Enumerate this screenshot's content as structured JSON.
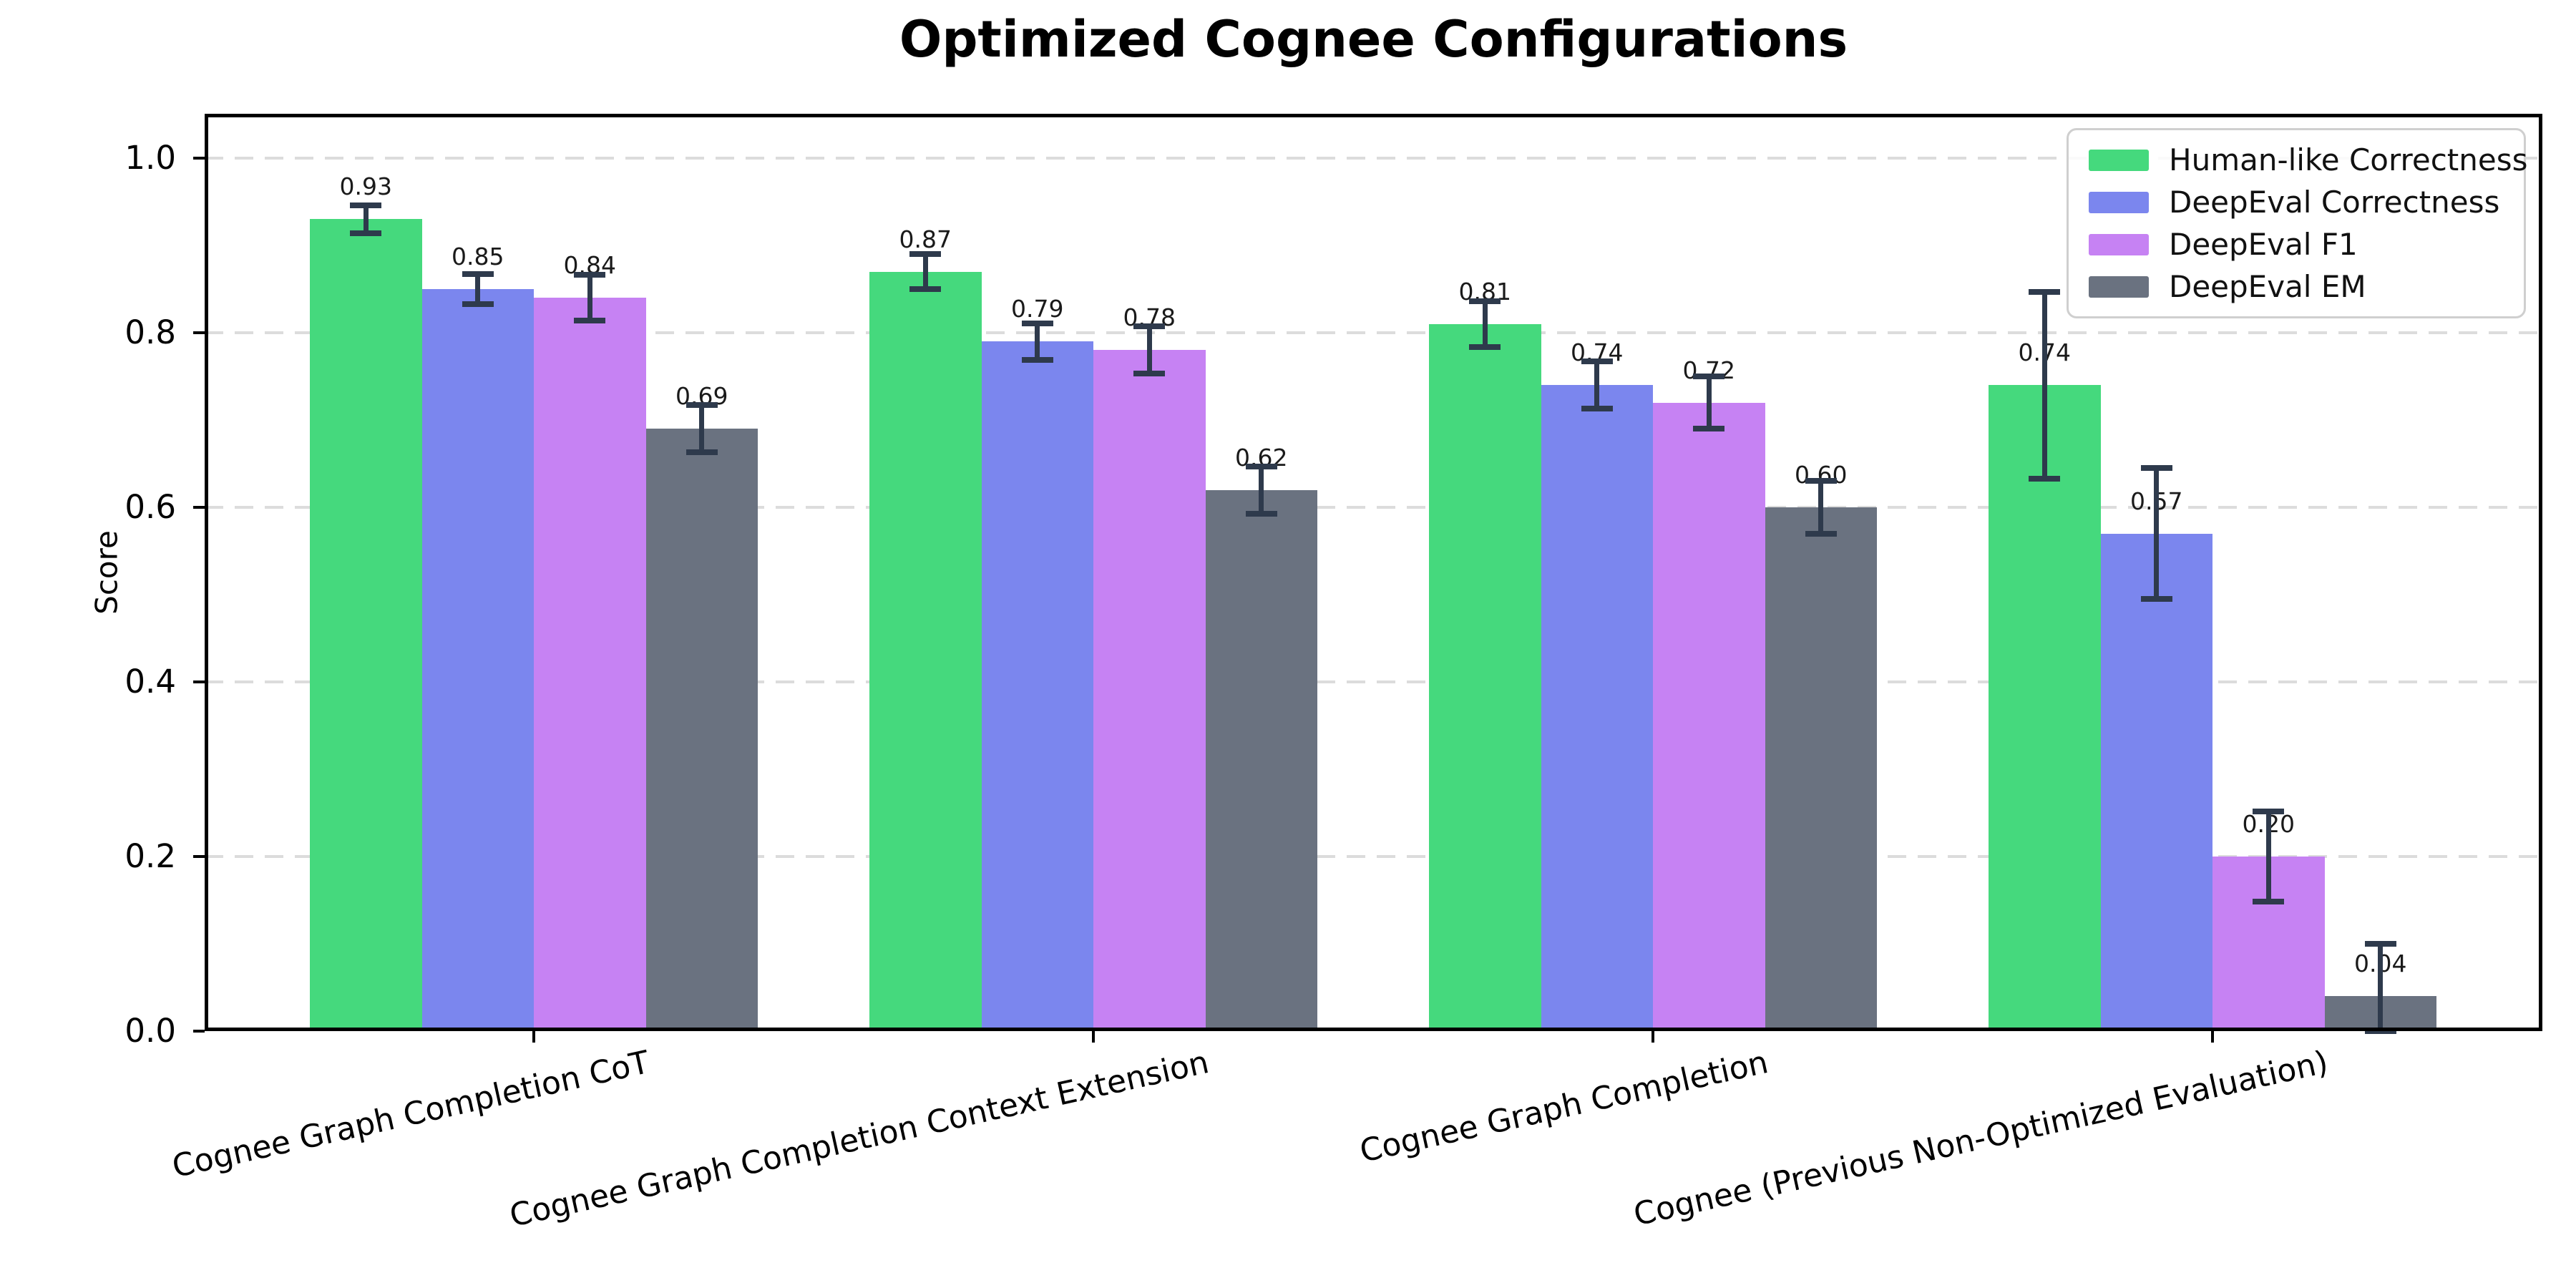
{
  "chart_data": {
    "type": "bar",
    "title": "Optimized Cognee Configurations",
    "ylabel": "Score",
    "xlabel": "",
    "ylim": [
      0,
      1.05
    ],
    "yticks": [
      0.0,
      0.2,
      0.4,
      0.6,
      0.8,
      1.0
    ],
    "grid": "horizontal-dashed",
    "legend_position": "upper-right",
    "categories": [
      "Cognee Graph Completion CoT",
      "Cognee Graph Completion Context Extension",
      "Cognee Graph Completion",
      "Cognee (Previous Non-Optimized Evaluation)"
    ],
    "series": [
      {
        "name": "Human-like Correctness",
        "color": "#45d97d",
        "values": [
          0.93,
          0.87,
          0.81,
          0.74
        ],
        "errors": [
          0.016,
          0.02,
          0.026,
          0.107
        ]
      },
      {
        "name": "DeepEval Correctness",
        "color": "#7b86ee",
        "values": [
          0.85,
          0.79,
          0.74,
          0.57
        ],
        "errors": [
          0.017,
          0.021,
          0.027,
          0.075
        ]
      },
      {
        "name": "DeepEval F1",
        "color": "#c682f3",
        "values": [
          0.84,
          0.78,
          0.72,
          0.2
        ],
        "errors": [
          0.026,
          0.027,
          0.03,
          0.052
        ]
      },
      {
        "name": "DeepEval EM",
        "color": "#6a7280",
        "values": [
          0.69,
          0.62,
          0.6,
          0.04
        ],
        "errors": [
          0.027,
          0.027,
          0.03,
          0.06
        ]
      }
    ],
    "error_bar_color": "#2e3a4c",
    "gridline_color": "#dcdcdc",
    "bar_label_format": "2-decimals"
  }
}
